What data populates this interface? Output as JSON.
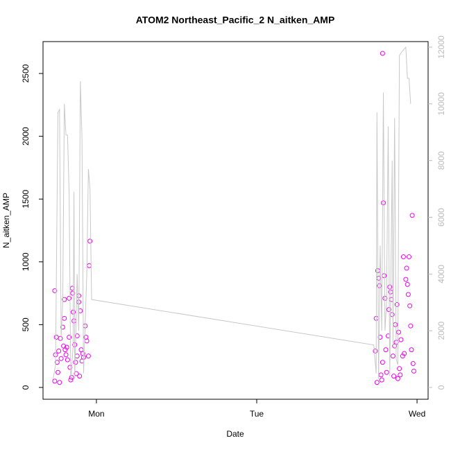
{
  "chart_data": {
    "type": "scatter",
    "title": "ATOM2 Northeast_Pacific_2 N_aitken_AMP",
    "x_label": "Date",
    "y_label": "N_aitken_AMP",
    "xlim": [
      -0.333,
      2.069
    ],
    "ylim": [
      -94,
      2754
    ],
    "y2lim": [
      -415,
      12195
    ],
    "xticks": [
      {
        "value": 0,
        "label": "Mon"
      },
      {
        "value": 1,
        "label": "Tue"
      },
      {
        "value": 2,
        "label": "Wed"
      }
    ],
    "yticks": [
      0,
      500,
      1000,
      1500,
      2000,
      2500
    ],
    "y2ticks": [
      0,
      2000,
      4000,
      6000,
      8000,
      10000,
      12000
    ],
    "y2_color": "#bbbbbb",
    "series": [
      {
        "type": "scatter",
        "color": "#ee00ee",
        "marker": "circle",
        "x": [
          -0.26,
          -0.26,
          -0.255,
          -0.25,
          -0.245,
          -0.24,
          -0.235,
          -0.23,
          -0.225,
          -0.22,
          -0.21,
          -0.205,
          -0.2,
          -0.2,
          -0.195,
          -0.19,
          -0.185,
          -0.18,
          -0.17,
          -0.17,
          -0.165,
          -0.16,
          -0.155,
          -0.15,
          -0.148,
          -0.145,
          -0.14,
          -0.135,
          -0.13,
          -0.125,
          -0.12,
          -0.12,
          -0.11,
          -0.11,
          -0.105,
          -0.1,
          -0.095,
          -0.09,
          -0.085,
          -0.08,
          -0.07,
          -0.065,
          -0.06,
          -0.05,
          -0.045,
          -0.04,
          1.74,
          1.745,
          1.75,
          1.755,
          1.76,
          1.765,
          1.77,
          1.775,
          1.78,
          1.785,
          1.79,
          1.795,
          1.8,
          1.805,
          1.81,
          1.82,
          1.825,
          1.83,
          1.835,
          1.84,
          1.845,
          1.85,
          1.855,
          1.86,
          1.865,
          1.87,
          1.875,
          1.88,
          1.885,
          1.89,
          1.895,
          1.9,
          1.91,
          1.915,
          1.92,
          1.93,
          1.935,
          1.94,
          1.945,
          1.95,
          1.955,
          1.96,
          1.965,
          1.97,
          1.975,
          1.98,
          1.785
        ],
        "values": [
          770,
          50,
          260,
          400,
          200,
          120,
          290,
          40,
          390,
          230,
          480,
          330,
          700,
          550,
          300,
          260,
          320,
          220,
          710,
          400,
          160,
          60,
          80,
          790,
          750,
          600,
          530,
          340,
          200,
          110,
          410,
          250,
          730,
          680,
          90,
          610,
          300,
          210,
          270,
          240,
          490,
          400,
          370,
          250,
          970,
          1165,
          290,
          550,
          40,
          930,
          870,
          810,
          400,
          100,
          60,
          200,
          1470,
          890,
          710,
          300,
          120,
          410,
          620,
          800,
          760,
          700,
          580,
          250,
          90,
          330,
          500,
          360,
          660,
          70,
          440,
          150,
          100,
          380,
          250,
          1040,
          270,
          860,
          950,
          820,
          740,
          1040,
          650,
          490,
          300,
          1370,
          190,
          130,
          2660
        ]
      },
      {
        "type": "line",
        "axis": "y2",
        "color": "#c8c8c8",
        "x": [
          -0.27,
          -0.255,
          -0.24,
          -0.23,
          -0.22,
          -0.21,
          -0.2,
          -0.19,
          -0.18,
          -0.17,
          -0.16,
          -0.145,
          -0.14,
          -0.135,
          -0.12,
          -0.11,
          -0.1,
          -0.09,
          -0.08,
          -0.06,
          -0.05,
          -0.04,
          -0.03,
          1.73,
          1.745,
          1.75,
          1.76,
          1.77,
          1.78,
          1.79,
          1.8,
          1.81,
          1.82,
          1.83,
          1.845,
          1.85,
          1.86,
          1.87,
          1.88,
          1.89,
          1.9,
          1.93,
          1.94,
          1.95,
          1.96
        ],
        "values": [
          300,
          800,
          9700,
          9800,
          1800,
          3000,
          10000,
          8900,
          8900,
          6800,
          200,
          1500,
          6900,
          300,
          4000,
          2000,
          10800,
          8800,
          500,
          4000,
          7700,
          7000,
          3100,
          1500,
          500,
          9700,
          300,
          5000,
          2000,
          10400,
          2000,
          3000,
          9200,
          400,
          8000,
          1500,
          9500,
          1000,
          800,
          11700,
          11800,
          12000,
          10900,
          10900,
          10000
        ]
      }
    ]
  }
}
